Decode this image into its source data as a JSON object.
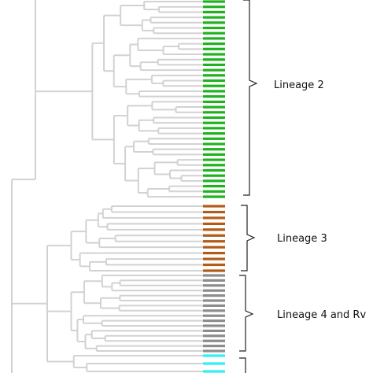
{
  "figure": {
    "colors": {
      "branch": "#d2d2d2",
      "bracket": "#222222",
      "lineage2": "#1fb21f",
      "lineage3": "#b35c18",
      "lineage4": "#8c8c8c",
      "other": "#2ff0f0"
    },
    "clades": [
      {
        "id": "lineage2",
        "label": "Lineage 2",
        "color_key": "lineage2",
        "strip_count": 38
      },
      {
        "id": "lineage3",
        "label": "Lineage 3",
        "color_key": "lineage3",
        "strip_count": 12
      },
      {
        "id": "lineage4",
        "label": "Lineage 4 and Rv",
        "color_key": "lineage4",
        "strip_count": 16
      },
      {
        "id": "other",
        "label": "",
        "color_key": "other",
        "strip_count": 3
      }
    ]
  }
}
